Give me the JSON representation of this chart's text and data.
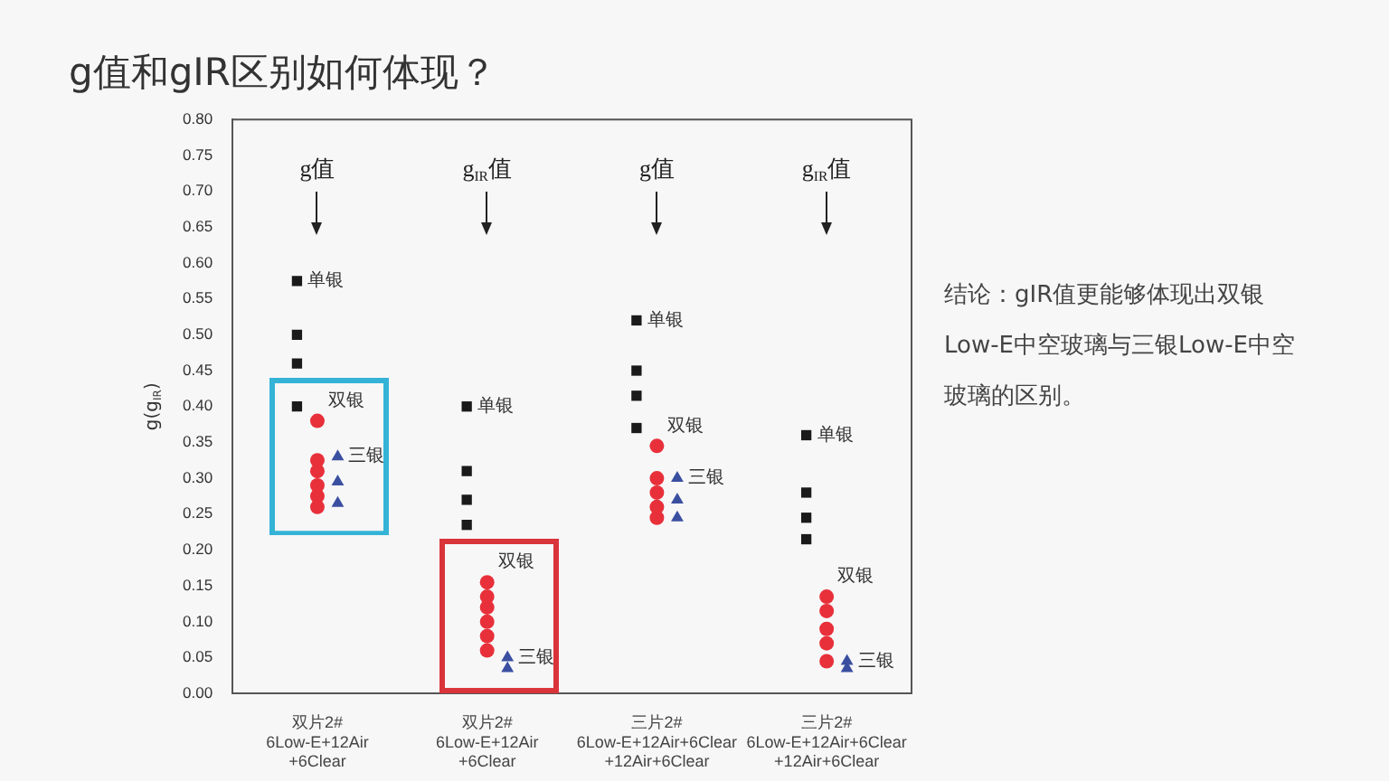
{
  "chart_data": {
    "type": "scatter",
    "title": "g值和gIR区别如何体现？",
    "ylabel": "g(g$_{IR}$)",
    "categories": [
      "双片2#\n6Low-E+12Air\n+6Clear",
      "双片2#\n6Low-E+12Air\n+6Clear",
      "三片2#\n6Low-E+12Air+6Clear\n+12Air+6Clear",
      "三片2#\n6Low-E+12Air+6Clear\n+12Air+6Clear"
    ],
    "ylim": [
      0,
      0.8
    ],
    "yticks": [
      {
        "value": 0,
        "label": "0.00"
      },
      {
        "value": 0.05,
        "label": "0.05"
      },
      {
        "value": 0.1,
        "label": "0.10"
      },
      {
        "value": 0.15,
        "label": "0.15"
      },
      {
        "value": 0.2,
        "label": "0.20"
      },
      {
        "value": 0.25,
        "label": "0.25"
      },
      {
        "value": 0.3,
        "label": "0.30"
      },
      {
        "value": 0.35,
        "label": "0.35"
      },
      {
        "value": 0.4,
        "label": "0.40"
      },
      {
        "value": 0.45,
        "label": "0.45"
      },
      {
        "value": 0.5,
        "label": "0.50"
      },
      {
        "value": 0.55,
        "label": "0.55"
      },
      {
        "value": 0.6,
        "label": "0.60"
      },
      {
        "value": 0.65,
        "label": "0.65"
      },
      {
        "value": 0.7,
        "label": "0.70"
      },
      {
        "value": 0.75,
        "label": "0.75"
      },
      {
        "value": 0.8,
        "label": "0.80"
      }
    ],
    "grid": false,
    "legend": false,
    "series": [
      {
        "name": "单银",
        "color": "#1a1a1a",
        "marker": "square",
        "values": [
          0.575,
          0.4,
          0.52,
          0.36
        ]
      },
      {
        "color": "#1a1a1a",
        "marker": "square",
        "values": [
          0.5,
          0.31,
          0.45,
          0.28
        ]
      },
      {
        "color": "#1a1a1a",
        "marker": "square",
        "values": [
          0.46,
          0.27,
          0.415,
          0.245
        ]
      },
      {
        "color": "#1a1a1a",
        "marker": "square",
        "values": [
          0.4,
          0.235,
          0.37,
          0.215
        ]
      },
      {
        "name": "双银",
        "color": "#e8303a",
        "marker": "circle",
        "values": [
          0.38,
          0.155,
          0.345,
          0.135
        ]
      },
      {
        "color": "#e8303a",
        "marker": "circle",
        "values": [
          0.325,
          0.135,
          0.3,
          0.115
        ]
      },
      {
        "color": "#e8303a",
        "marker": "circle",
        "values": [
          0.31,
          0.12,
          0.28,
          0.09
        ]
      },
      {
        "color": "#e8303a",
        "marker": "circle",
        "values": [
          0.29,
          0.1,
          0.26,
          0.07
        ]
      },
      {
        "color": "#e8303a",
        "marker": "circle",
        "values": [
          0.275,
          0.08,
          0.245,
          0.045
        ]
      },
      {
        "color": "#e8303a",
        "marker": "circle",
        "values": [
          0.26,
          0.06,
          null,
          null
        ]
      },
      {
        "name": "三银",
        "color": "#3a4fa0",
        "marker": "triangle",
        "values": [
          0.33,
          0.05,
          0.3,
          0.045
        ]
      },
      {
        "color": "#3a4fa0",
        "marker": "triangle",
        "values": [
          0.295,
          0.035,
          0.27,
          0.035
        ]
      },
      {
        "color": "#3a4fa0",
        "marker": "triangle",
        "values": [
          0.265,
          null,
          0.245,
          null
        ]
      }
    ],
    "annotations": [
      "g值",
      "g$_{IR}$值",
      "g值",
      "g$_{IR}$值",
      "结论：gIR值更能够体现出双银Low-E中空玻璃与三银Low-E中空玻璃的区别。"
    ]
  }
}
